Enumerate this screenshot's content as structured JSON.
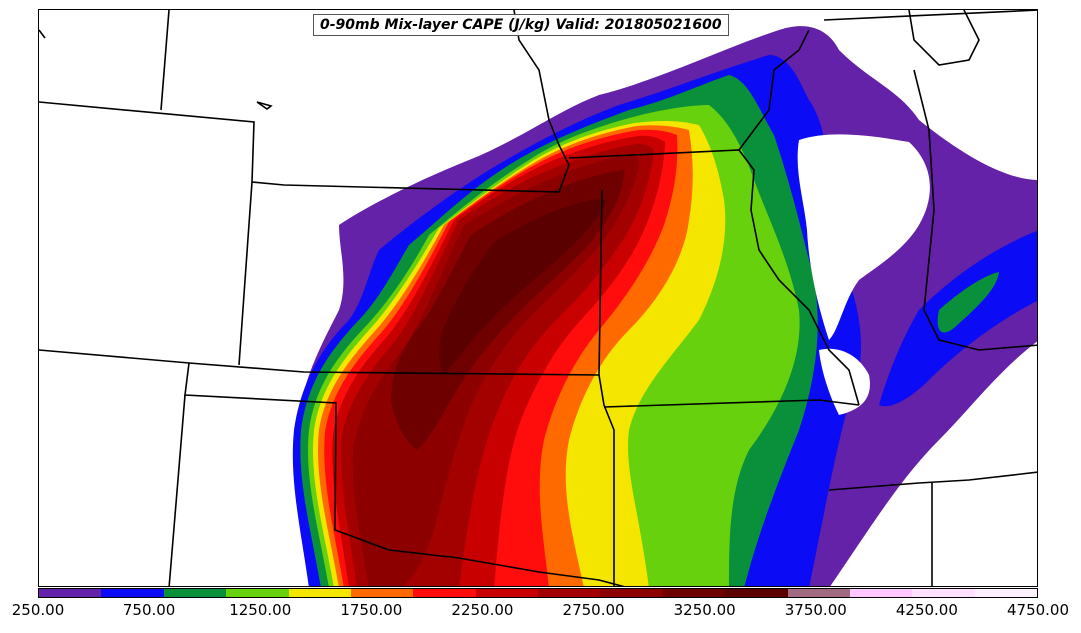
{
  "title": "0-90mb Mix-layer CAPE (J/kg) Valid: 201805021600",
  "colorbar": {
    "colors": [
      "#6322a8",
      "#0b0bf5",
      "#0a8f3a",
      "#66d10c",
      "#f5e600",
      "#ff6a00",
      "#ff0d0d",
      "#c80000",
      "#a30000",
      "#8c0000",
      "#6e0000",
      "#5a0000",
      "#a06a80",
      "#ffc8ff",
      "#ffe0ff",
      "#fff0ff"
    ],
    "tick_labels": [
      "250.00",
      "750.00",
      "1250.00",
      "1750.00",
      "2250.00",
      "2750.00",
      "3250.00",
      "3750.00",
      "4250.00",
      "4750.00"
    ]
  },
  "legend_units": "J/kg"
}
